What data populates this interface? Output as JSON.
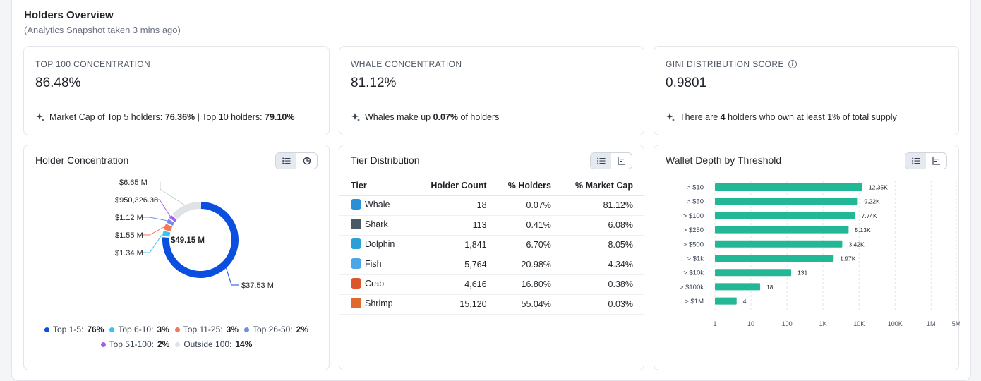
{
  "header": {
    "title": "Holders Overview",
    "subtitle": "(Analytics Snapshot taken 3 mins ago)"
  },
  "stats": [
    {
      "label": "TOP 100 CONCENTRATION",
      "value": "86.48%",
      "note": {
        "t1": "Market Cap of Top 5 holders: ",
        "b1": "76.36%",
        "t2": " | Top 10 holders: ",
        "b2": "79.10%"
      }
    },
    {
      "label": "WHALE CONCENTRATION",
      "value": "81.12%",
      "note": {
        "t1": "Whales make up ",
        "b1": "0.07%",
        "t2": " of holders"
      }
    },
    {
      "label": "GINI DISTRIBUTION SCORE",
      "value": "0.9801",
      "note": {
        "t1": "There are ",
        "b1": "4",
        "t2": " holders who own at least 1% of total supply"
      }
    }
  ],
  "holder_concentration": {
    "title": "Holder Concentration",
    "center_label": "$49.15 M",
    "callouts": [
      "$6.65 M",
      "$950,326.38",
      "$1.12 M",
      "$1.55 M",
      "$1.34 M",
      "$37.53 M"
    ],
    "legend": [
      {
        "name": "Top 1-5:",
        "value": "76%",
        "color": "#0b4fe0"
      },
      {
        "name": "Top 6-10:",
        "value": "3%",
        "color": "#38c3f0"
      },
      {
        "name": "Top 11-25:",
        "value": "3%",
        "color": "#f07a5a"
      },
      {
        "name": "Top 26-50:",
        "value": "2%",
        "color": "#6f8ee6"
      },
      {
        "name": "Top 51-100:",
        "value": "2%",
        "color": "#a45df0"
      },
      {
        "name": "Outside 100:",
        "value": "14%",
        "color": "#dfe3e8"
      }
    ],
    "chart_data": {
      "type": "pie",
      "categories": [
        "Top 1-5",
        "Top 6-10",
        "Top 11-25",
        "Top 26-50",
        "Top 51-100",
        "Outside 100"
      ],
      "values": [
        37.53,
        1.34,
        1.55,
        1.12,
        0.950326,
        6.65
      ],
      "unit": "$M"
    }
  },
  "tier_distribution": {
    "title": "Tier Distribution",
    "columns": [
      "Tier",
      "Holder Count",
      "% Holders",
      "% Market Cap"
    ],
    "rows": [
      {
        "tier": "Whale",
        "icon": "whale-icon",
        "color": "#2b8fd6",
        "count": "18",
        "pct_holders": "0.07%",
        "pct_mcap": "81.12%"
      },
      {
        "tier": "Shark",
        "icon": "shark-icon",
        "color": "#4a5866",
        "count": "113",
        "pct_holders": "0.41%",
        "pct_mcap": "6.08%"
      },
      {
        "tier": "Dolphin",
        "icon": "dolphin-icon",
        "color": "#2a9fd8",
        "count": "1,841",
        "pct_holders": "6.70%",
        "pct_mcap": "8.05%"
      },
      {
        "tier": "Fish",
        "icon": "fish-icon",
        "color": "#4aa6e6",
        "count": "5,764",
        "pct_holders": "20.98%",
        "pct_mcap": "4.34%"
      },
      {
        "tier": "Crab",
        "icon": "crab-icon",
        "color": "#d9572b",
        "count": "4,616",
        "pct_holders": "16.80%",
        "pct_mcap": "0.38%"
      },
      {
        "tier": "Shrimp",
        "icon": "shrimp-icon",
        "color": "#e06a2c",
        "count": "15,120",
        "pct_holders": "55.04%",
        "pct_mcap": "0.03%"
      }
    ]
  },
  "wallet_depth": {
    "title": "Wallet Depth by Threshold",
    "bar_color": "#22b795",
    "chart_data": {
      "type": "bar",
      "orientation": "horizontal",
      "scale": "log",
      "categories": [
        "> $10",
        "> $50",
        "> $100",
        "> $250",
        "> $500",
        "> $1k",
        "> $10k",
        "> $100k",
        "> $1M"
      ],
      "values": [
        12350,
        9220,
        7740,
        5130,
        3420,
        1970,
        131,
        18,
        4
      ],
      "labels": [
        "12.35K",
        "9.22K",
        "7.74K",
        "5.13K",
        "3.42K",
        "1.97K",
        "131",
        "18",
        "4"
      ],
      "xticks": [
        1,
        10,
        100,
        1000,
        10000,
        100000,
        1000000,
        5000000
      ],
      "xtick_labels": [
        "1",
        "10",
        "100",
        "1K",
        "10K",
        "100K",
        "1M",
        "5M"
      ],
      "grid": true
    }
  }
}
